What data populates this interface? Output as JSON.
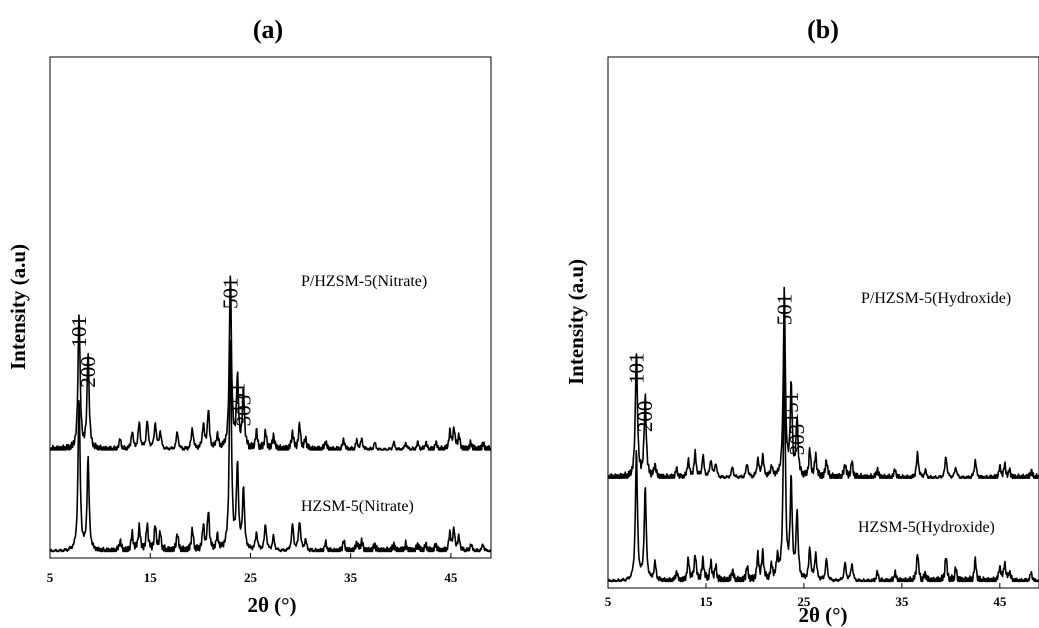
{
  "chart_data": [
    {
      "type": "line",
      "title": "(a)",
      "xlabel": "2θ (°)",
      "ylabel": "Intensity (a.u)",
      "xlim": [
        5,
        49
      ],
      "xticks": [
        "5",
        "15",
        "25",
        "35",
        "45"
      ],
      "xtick_values": [
        5,
        15,
        25,
        35,
        45
      ],
      "yticks": "none",
      "series": [
        {
          "name": "P/HZSM-5(Nitrate)",
          "offset": 0.58,
          "peaks": [
            [
              7.9,
              0.78
            ],
            [
              8.8,
              0.55
            ],
            [
              12.0,
              0.06
            ],
            [
              13.2,
              0.1
            ],
            [
              13.9,
              0.15
            ],
            [
              14.7,
              0.16
            ],
            [
              15.5,
              0.15
            ],
            [
              16.0,
              0.1
            ],
            [
              17.7,
              0.1
            ],
            [
              19.2,
              0.12
            ],
            [
              20.3,
              0.14
            ],
            [
              20.8,
              0.22
            ],
            [
              21.7,
              0.08
            ],
            [
              23.0,
              1.0
            ],
            [
              23.7,
              0.4
            ],
            [
              24.3,
              0.33
            ],
            [
              25.6,
              0.1
            ],
            [
              26.5,
              0.1
            ],
            [
              27.3,
              0.08
            ],
            [
              29.2,
              0.1
            ],
            [
              29.9,
              0.14
            ],
            [
              30.5,
              0.06
            ],
            [
              32.5,
              0.05
            ],
            [
              34.3,
              0.06
            ],
            [
              35.6,
              0.05
            ],
            [
              36.1,
              0.06
            ],
            [
              37.4,
              0.04
            ],
            [
              39.3,
              0.04
            ],
            [
              40.5,
              0.04
            ],
            [
              41.7,
              0.04
            ],
            [
              42.5,
              0.04
            ],
            [
              43.5,
              0.04
            ],
            [
              44.9,
              0.1
            ],
            [
              45.3,
              0.12
            ],
            [
              45.8,
              0.08
            ],
            [
              47.0,
              0.04
            ],
            [
              48.2,
              0.04
            ]
          ],
          "peak_labels": [
            {
              "hkl": "101",
              "two_theta": 7.9,
              "intensity": 0.78
            },
            {
              "hkl": "200",
              "two_theta": 8.8,
              "intensity": 0.55
            },
            {
              "hkl": "501",
              "two_theta": 23.0,
              "intensity": 1.0
            },
            {
              "hkl": "151",
              "two_theta": 23.7,
              "intensity": 0.4
            },
            {
              "hkl": "303",
              "two_theta": 24.3,
              "intensity": 0.33
            }
          ]
        },
        {
          "name": "HZSM-5(Nitrate)",
          "offset": 0.0,
          "peaks": [
            [
              7.9,
              0.87
            ],
            [
              8.8,
              0.52
            ],
            [
              12.0,
              0.06
            ],
            [
              13.2,
              0.1
            ],
            [
              13.9,
              0.14
            ],
            [
              14.7,
              0.15
            ],
            [
              15.5,
              0.14
            ],
            [
              16.0,
              0.1
            ],
            [
              17.7,
              0.1
            ],
            [
              19.2,
              0.12
            ],
            [
              20.3,
              0.14
            ],
            [
              20.8,
              0.22
            ],
            [
              21.7,
              0.08
            ],
            [
              23.0,
              1.2
            ],
            [
              23.7,
              0.48
            ],
            [
              24.3,
              0.35
            ],
            [
              25.6,
              0.1
            ],
            [
              26.5,
              0.15
            ],
            [
              27.3,
              0.08
            ],
            [
              29.2,
              0.15
            ],
            [
              29.9,
              0.17
            ],
            [
              30.5,
              0.06
            ],
            [
              32.5,
              0.05
            ],
            [
              34.3,
              0.06
            ],
            [
              35.6,
              0.05
            ],
            [
              36.1,
              0.06
            ],
            [
              37.4,
              0.04
            ],
            [
              39.3,
              0.04
            ],
            [
              40.5,
              0.04
            ],
            [
              41.7,
              0.04
            ],
            [
              42.5,
              0.04
            ],
            [
              43.5,
              0.04
            ],
            [
              44.9,
              0.1
            ],
            [
              45.3,
              0.12
            ],
            [
              45.8,
              0.08
            ],
            [
              47.0,
              0.04
            ],
            [
              48.2,
              0.04
            ]
          ]
        }
      ]
    },
    {
      "type": "line",
      "title": "(b)",
      "xlabel": "2θ (°)",
      "ylabel": "Intensity (a.u)",
      "xlim": [
        5,
        49
      ],
      "xticks": [
        "5",
        "15",
        "25",
        "35",
        "45"
      ],
      "xtick_values": [
        5,
        15,
        25,
        35,
        45
      ],
      "yticks": "none",
      "series": [
        {
          "name": "P/HZSM-5(Hydroxide)",
          "offset": 0.58,
          "peaks": [
            [
              7.9,
              0.72
            ],
            [
              8.8,
              0.45
            ],
            [
              9.8,
              0.07
            ],
            [
              12.0,
              0.05
            ],
            [
              13.2,
              0.1
            ],
            [
              13.9,
              0.14
            ],
            [
              14.7,
              0.12
            ],
            [
              15.5,
              0.1
            ],
            [
              16.0,
              0.08
            ],
            [
              17.7,
              0.06
            ],
            [
              19.2,
              0.08
            ],
            [
              20.3,
              0.1
            ],
            [
              20.8,
              0.12
            ],
            [
              21.7,
              0.06
            ],
            [
              23.0,
              1.05
            ],
            [
              23.7,
              0.5
            ],
            [
              24.3,
              0.32
            ],
            [
              25.6,
              0.15
            ],
            [
              26.2,
              0.12
            ],
            [
              27.3,
              0.1
            ],
            [
              29.2,
              0.08
            ],
            [
              29.9,
              0.09
            ],
            [
              32.5,
              0.05
            ],
            [
              34.3,
              0.05
            ],
            [
              36.6,
              0.14
            ],
            [
              37.4,
              0.04
            ],
            [
              39.5,
              0.12
            ],
            [
              40.5,
              0.06
            ],
            [
              42.5,
              0.1
            ],
            [
              45.0,
              0.06
            ],
            [
              45.5,
              0.07
            ],
            [
              46.0,
              0.04
            ],
            [
              48.2,
              0.04
            ]
          ],
          "peak_labels": [
            {
              "hkl": "101",
              "two_theta": 7.9,
              "intensity": 0.72
            },
            {
              "hkl": "200",
              "two_theta": 8.8,
              "intensity": 0.45
            },
            {
              "hkl": "501",
              "two_theta": 23.0,
              "intensity": 1.05
            },
            {
              "hkl": "151",
              "two_theta": 23.7,
              "intensity": 0.5
            },
            {
              "hkl": "303",
              "two_theta": 24.3,
              "intensity": 0.32
            }
          ]
        },
        {
          "name": "HZSM-5(Hydroxide)",
          "offset": 0.0,
          "peaks": [
            [
              7.9,
              0.73
            ],
            [
              8.8,
              0.52
            ],
            [
              9.8,
              0.1
            ],
            [
              12.0,
              0.05
            ],
            [
              13.2,
              0.12
            ],
            [
              13.9,
              0.15
            ],
            [
              14.7,
              0.12
            ],
            [
              15.5,
              0.1
            ],
            [
              16.0,
              0.08
            ],
            [
              17.7,
              0.06
            ],
            [
              19.2,
              0.08
            ],
            [
              20.3,
              0.14
            ],
            [
              20.8,
              0.15
            ],
            [
              21.7,
              0.08
            ],
            [
              22.3,
              0.12
            ],
            [
              23.0,
              1.28
            ],
            [
              23.7,
              0.55
            ],
            [
              24.3,
              0.38
            ],
            [
              25.6,
              0.18
            ],
            [
              26.2,
              0.15
            ],
            [
              27.3,
              0.12
            ],
            [
              29.2,
              0.1
            ],
            [
              29.9,
              0.1
            ],
            [
              32.5,
              0.05
            ],
            [
              34.3,
              0.05
            ],
            [
              36.6,
              0.16
            ],
            [
              37.4,
              0.04
            ],
            [
              39.5,
              0.14
            ],
            [
              40.5,
              0.07
            ],
            [
              42.5,
              0.12
            ],
            [
              45.0,
              0.08
            ],
            [
              45.5,
              0.1
            ],
            [
              46.0,
              0.05
            ],
            [
              48.2,
              0.05
            ]
          ]
        }
      ]
    }
  ]
}
